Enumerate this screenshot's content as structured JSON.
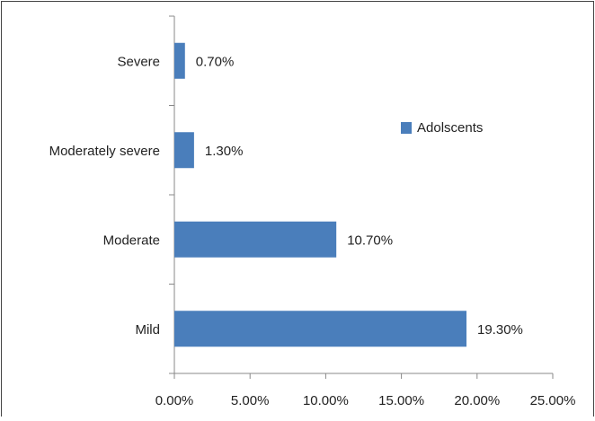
{
  "chart_data": {
    "type": "hbar",
    "categories": [
      "Severe",
      "Moderately severe",
      "Moderate",
      "Mild"
    ],
    "series": [
      {
        "name": "Adolscents",
        "color": "#4a7ebb",
        "values": [
          0.7,
          1.3,
          10.7,
          19.3
        ],
        "value_labels": [
          "0.70%",
          "1.30%",
          "10.70%",
          "19.30%"
        ]
      }
    ],
    "xlim": [
      0,
      25
    ],
    "xticks": [
      {
        "value": 0,
        "label": "0.00%"
      },
      {
        "value": 5,
        "label": "5.00%"
      },
      {
        "value": 10,
        "label": "10.00%"
      },
      {
        "value": 15,
        "label": "15.00%"
      },
      {
        "value": 20,
        "label": "20.00%"
      },
      {
        "value": 25,
        "label": "25.00%"
      }
    ],
    "legend": "right"
  }
}
